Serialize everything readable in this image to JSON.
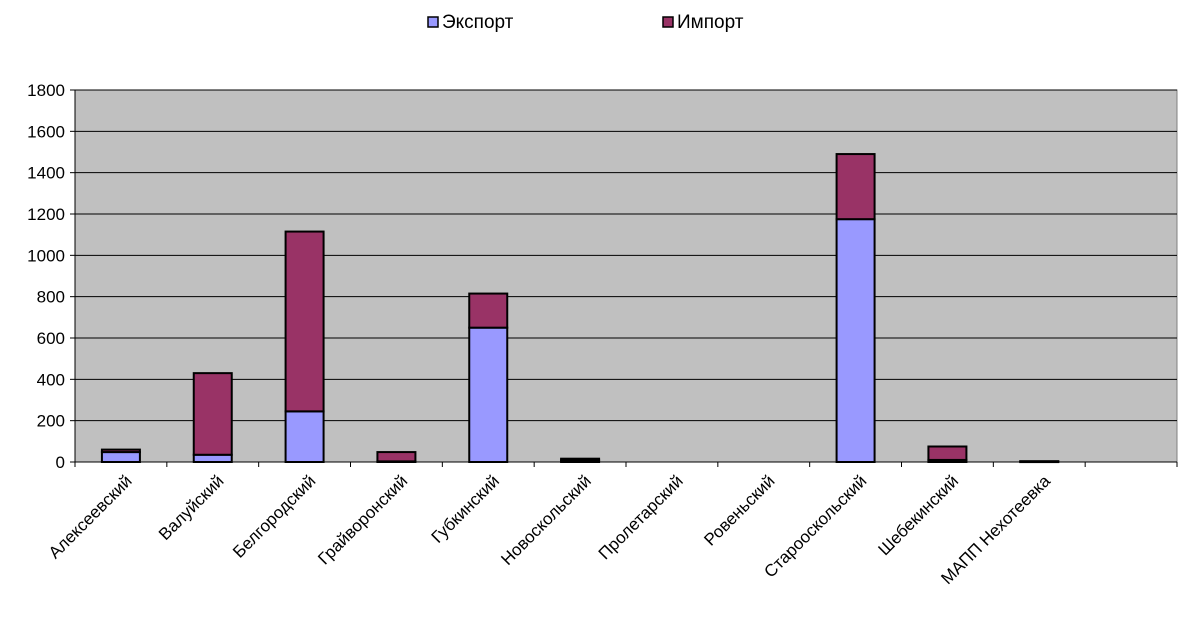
{
  "chart_data": {
    "type": "bar",
    "stacked": true,
    "title": "",
    "xlabel": "",
    "ylabel": "",
    "categories": [
      "Алексеевский",
      "Валуйский",
      "Белгородский",
      "Грайворонский",
      "Губкинский",
      "Новоскольский",
      "Пролетарский",
      "Ровеньский",
      "Старооскольский",
      "Шебекинский",
      "МАПП Нехотеевка"
    ],
    "series": [
      {
        "name": "Экспорт",
        "color": "#9999ff",
        "values": [
          48,
          35,
          245,
          3,
          650,
          8,
          0,
          0,
          1175,
          10,
          2
        ]
      },
      {
        "name": "Импорт",
        "color": "#993366",
        "values": [
          12,
          395,
          870,
          45,
          165,
          8,
          0,
          0,
          315,
          65,
          2
        ]
      }
    ],
    "ylim": [
      0,
      1800
    ],
    "yticks": [
      0,
      200,
      400,
      600,
      800,
      1000,
      1200,
      1400,
      1600,
      1800
    ],
    "grid": true,
    "legend_position": "top",
    "plot_background": "#c0c0c0"
  }
}
